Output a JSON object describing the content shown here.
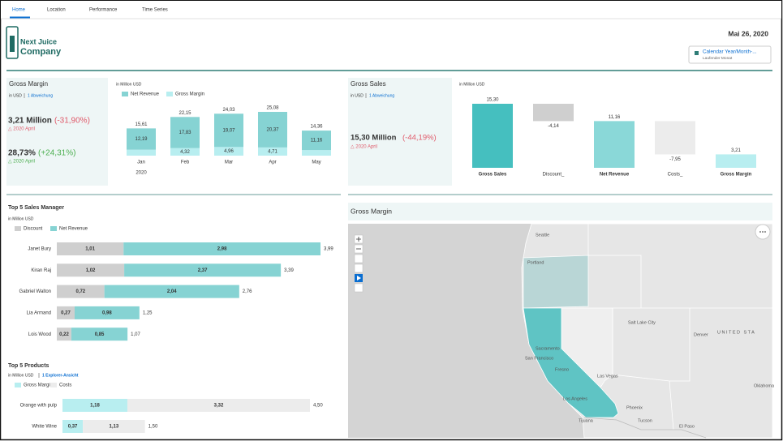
{
  "nav": {
    "tabs": [
      "Home",
      "Location",
      "Performance",
      "Time Series"
    ]
  },
  "header": {
    "logo_line1": "Next Juice",
    "logo_line2": "Company",
    "date": "Mai 26, 2020",
    "filter_title": "Calendar Year/Month-...",
    "filter_value": "Laufender Monat"
  },
  "gross_margin_kpi": {
    "title": "Gross Margin",
    "unit": "in USD",
    "variance": "1 Abweichung",
    "value": "3,21 Million",
    "delta": "(-31,90%)",
    "period": "△ 2020 April",
    "value2": "28,73%",
    "delta2": "(+24,31%)",
    "period2": "△ 2020 April"
  },
  "gross_sales_kpi": {
    "title": "Gross Sales",
    "unit": "in USD",
    "variance": "1 Abweichung",
    "value": "15,30 Million",
    "delta": "(-44,19%)",
    "period": "△ 2020 April"
  },
  "chart_data": [
    {
      "type": "stacked-column",
      "subtitle": "in Million USD",
      "categories": [
        "Jan",
        "Feb",
        "Mar",
        "Apr",
        "May"
      ],
      "year_label": "2020",
      "series": [
        {
          "name": "Net Revenue",
          "color": "#86d3d3",
          "values": [
            12.19,
            17.83,
            19.07,
            20.37,
            11.16
          ],
          "value_labels": [
            "12,19",
            "17,83",
            "19,07",
            "20,37",
            "11,16"
          ]
        },
        {
          "name": "Gross Margin",
          "color": "#b8eef0",
          "values": [
            3.42,
            4.32,
            4.96,
            4.71,
            3.2
          ],
          "value_labels": [
            null,
            "4,32",
            "4,96",
            "4,71",
            null
          ]
        }
      ],
      "total_labels": [
        "15,61",
        "22,15",
        "24,03",
        "25,08",
        "14,36"
      ]
    },
    {
      "type": "waterfall",
      "subtitle": "in Million USD",
      "categories": [
        "Gross Sales",
        "Discount_",
        "Net Revenue",
        "Costs_",
        "Gross Margin"
      ],
      "values": [
        15.3,
        -4.14,
        11.16,
        -7.95,
        3.21
      ],
      "value_labels": [
        "15,30",
        "-4,14",
        "11,16",
        "-7,95",
        "3,21"
      ],
      "totals": [
        true,
        false,
        true,
        false,
        true
      ],
      "colors": [
        "#45bfbf",
        "#cfcfcf",
        "#8ad8d8",
        "#ececec",
        "#b8eef0"
      ]
    },
    {
      "type": "stacked-hbar",
      "title": "Top 5 Sales Manager",
      "subtitle": "in Million USD",
      "categories": [
        "Janet Bury",
        "Kiran Raj",
        "Gabriel Walton",
        "Lia Armand",
        "Lois Wood"
      ],
      "series": [
        {
          "name": "Discount",
          "color": "#cfcfcf",
          "values": [
            1.01,
            1.02,
            0.72,
            0.27,
            0.22
          ],
          "value_labels": [
            "1,01",
            "1,02",
            "0,72",
            "0,27",
            "0,22"
          ]
        },
        {
          "name": "Net Revenue",
          "color": "#86d3d3",
          "values": [
            2.98,
            2.37,
            2.04,
            0.98,
            0.85
          ],
          "value_labels": [
            "2,98",
            "2,37",
            "2,04",
            "0,98",
            "0,85"
          ]
        }
      ],
      "total_labels": [
        "3,99",
        "3,39",
        "2,76",
        "1,25",
        "1,07"
      ]
    },
    {
      "type": "stacked-hbar",
      "title": "Top 5 Products",
      "subtitle": "in Million USD",
      "note": "1 Explorer-Ansicht",
      "categories": [
        "Orange with pulp",
        "White Wine"
      ],
      "series": [
        {
          "name": "Gross Margin",
          "color": "#b8eef0",
          "values": [
            1.18,
            0.37
          ],
          "value_labels": [
            "1,18",
            "0,37"
          ]
        },
        {
          "name": "Costs",
          "color": "#ececec",
          "values": [
            3.32,
            1.13
          ],
          "value_labels": [
            "3,32",
            "1,13"
          ]
        }
      ],
      "total_labels": [
        "4,50",
        "1,50"
      ]
    }
  ],
  "map": {
    "title": "Gross Margin",
    "labels": [
      "Seattle",
      "Portland",
      "Salt Lake City",
      "Denver",
      "UNITED STA",
      "Sacramento",
      "San Francisco",
      "Fresno",
      "Las Vegas",
      "Los Angeles",
      "Phoenix",
      "Tijuana",
      "Tucson",
      "El Paso",
      "Oklahoma"
    ]
  }
}
